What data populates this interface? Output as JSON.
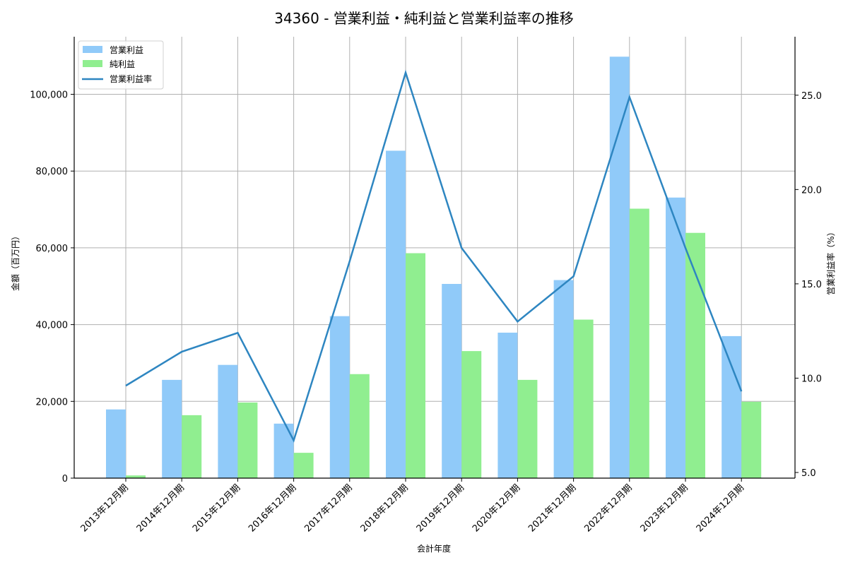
{
  "chart_data": {
    "type": "bar",
    "title": "34360 - 営業利益・純利益と営業利益率の推移",
    "xlabel": "会計年度",
    "ylabel": "金額（百万円）",
    "ylabel_right": "営業利益率（%）",
    "categories": [
      "2013年12月期",
      "2014年12月期",
      "2015年12月期",
      "2016年12月期",
      "2017年12月期",
      "2018年12月期",
      "2019年12月期",
      "2020年12月期",
      "2021年12月期",
      "2022年12月期",
      "2023年12月期",
      "2024年12月期"
    ],
    "series": [
      {
        "name": "営業利益",
        "type": "bar",
        "axis": "left",
        "color": "#90caf9",
        "values": [
          17900,
          25600,
          29500,
          14200,
          42200,
          85300,
          50600,
          37900,
          51600,
          109800,
          73100,
          37000
        ]
      },
      {
        "name": "純利益",
        "type": "bar",
        "axis": "left",
        "color": "#90ee90",
        "values": [
          700,
          16400,
          19700,
          6600,
          27100,
          58600,
          33100,
          25600,
          41300,
          70200,
          63900,
          19900
        ]
      },
      {
        "name": "営業利益率",
        "type": "line",
        "axis": "right",
        "color": "#2e86c1",
        "values": [
          9.6,
          11.4,
          12.4,
          6.7,
          16.2,
          26.2,
          16.9,
          13.0,
          15.4,
          24.9,
          16.9,
          9.3
        ]
      }
    ],
    "ylim": [
      0,
      115000
    ],
    "yticks": [
      0,
      20000,
      40000,
      60000,
      80000,
      100000
    ],
    "ytick_labels": [
      "0",
      "20,000",
      "40,000",
      "60,000",
      "80,000",
      "100,000"
    ],
    "ylim_right": [
      4.7,
      28.1
    ],
    "yticks_right": [
      5.0,
      10.0,
      15.0,
      20.0,
      25.0
    ],
    "ytick_labels_right": [
      "5.0",
      "10.0",
      "15.0",
      "20.0",
      "25.0"
    ],
    "grid": true,
    "legend_position": "upper left"
  }
}
